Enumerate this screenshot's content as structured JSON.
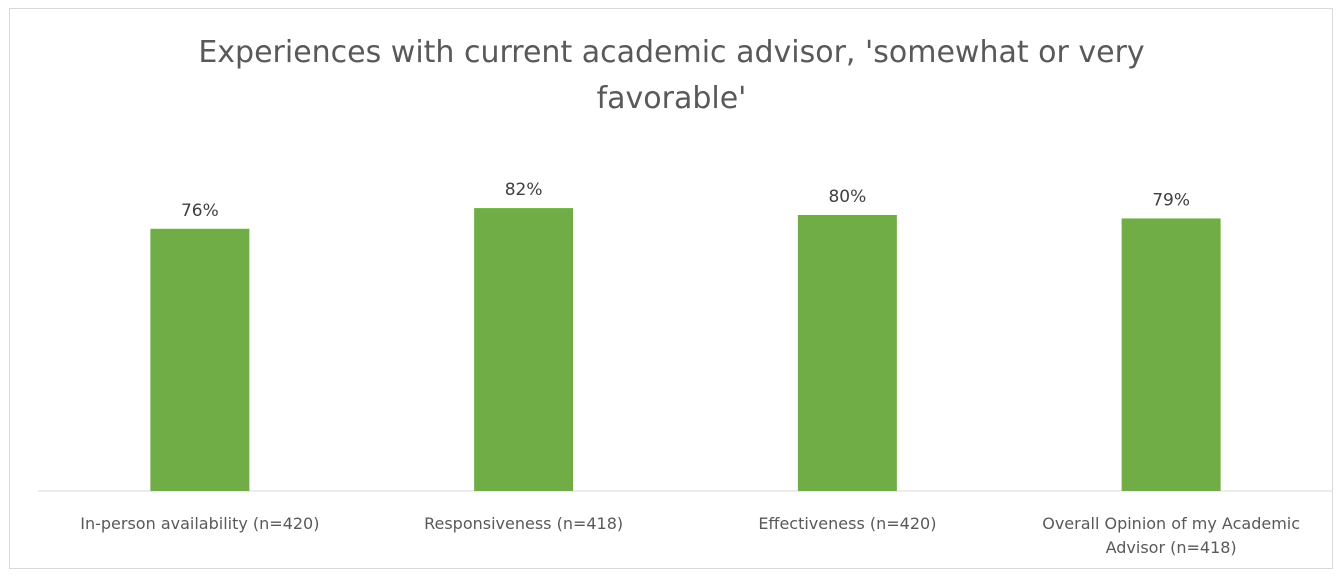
{
  "chart_data": {
    "type": "bar",
    "title": "Experiences with current academic advisor, 'somewhat or very favorable'",
    "categories": [
      "In-person availability (n=420)",
      "Responsiveness (n=418)",
      "Effectiveness (n=420)",
      "Overall Opinion of my Academic Advisor (n=418)"
    ],
    "values": [
      76,
      82,
      80,
      79
    ],
    "value_labels": [
      "76%",
      "82%",
      "80%",
      "79%"
    ],
    "ylim": [
      0,
      100
    ],
    "grid": false,
    "legend": "none",
    "bar_color": "#70ad47"
  }
}
